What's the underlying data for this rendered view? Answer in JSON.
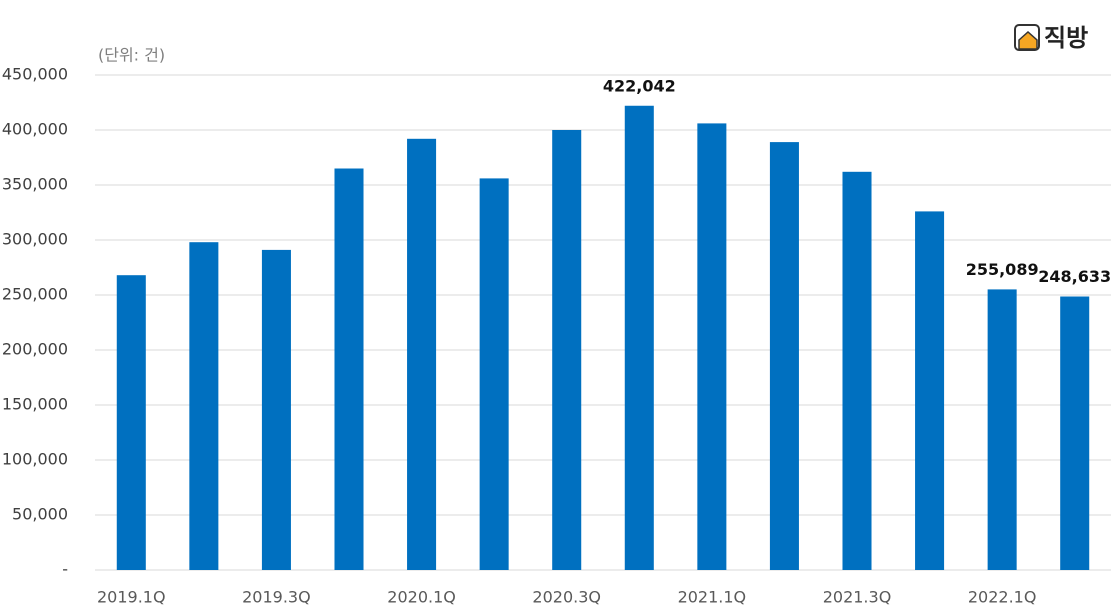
{
  "brand": "직방",
  "chart_data": {
    "type": "bar",
    "subtitle": "(단위: 건)",
    "categories": [
      "2019.1Q",
      null,
      "2019.3Q",
      null,
      "2020.1Q",
      null,
      "2020.3Q",
      null,
      "2021.1Q",
      null,
      "2021.3Q",
      null,
      "2022.1Q",
      null
    ],
    "values": [
      268000,
      298000,
      291000,
      365000,
      392000,
      356000,
      400000,
      422042,
      406000,
      389000,
      362000,
      326000,
      255089,
      248633
    ],
    "value_labels": [
      null,
      null,
      null,
      null,
      null,
      null,
      null,
      "422,042",
      null,
      null,
      null,
      null,
      "255,089",
      "248,633"
    ],
    "color": "#0070c0",
    "ylim": [
      0,
      450000
    ],
    "yticks": [
      {
        "value": 0,
        "label": "-"
      },
      {
        "value": 50000,
        "label": "50,000"
      },
      {
        "value": 100000,
        "label": "100,000"
      },
      {
        "value": 150000,
        "label": "150,000"
      },
      {
        "value": 200000,
        "label": "200,000"
      },
      {
        "value": 250000,
        "label": "250,000"
      },
      {
        "value": 300000,
        "label": "300,000"
      },
      {
        "value": 350000,
        "label": "350,000"
      },
      {
        "value": 400000,
        "label": "400,000"
      },
      {
        "value": 450000,
        "label": "450,000"
      }
    ],
    "grid": true
  }
}
